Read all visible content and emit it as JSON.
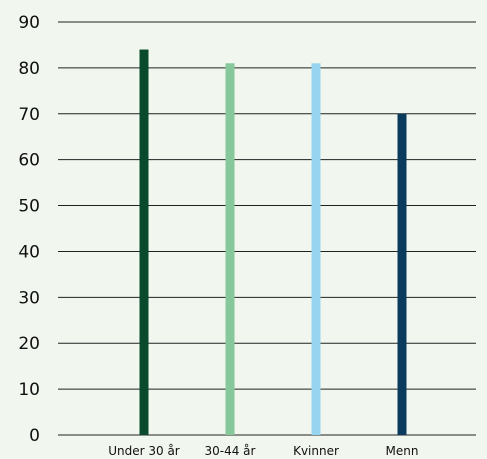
{
  "chart_data": {
    "type": "bar",
    "categories": [
      "Under 30 år",
      "30-44 år",
      "Kvinner",
      "Menn"
    ],
    "values": [
      84,
      81,
      81,
      70
    ],
    "colors": [
      "#0a4a2c",
      "#86c89a",
      "#96d4ef",
      "#0a3a5c"
    ],
    "ylim": [
      0,
      90
    ],
    "yticks": [
      0,
      10,
      20,
      30,
      40,
      50,
      60,
      70,
      80,
      90
    ],
    "grid": true,
    "legend": "none"
  }
}
